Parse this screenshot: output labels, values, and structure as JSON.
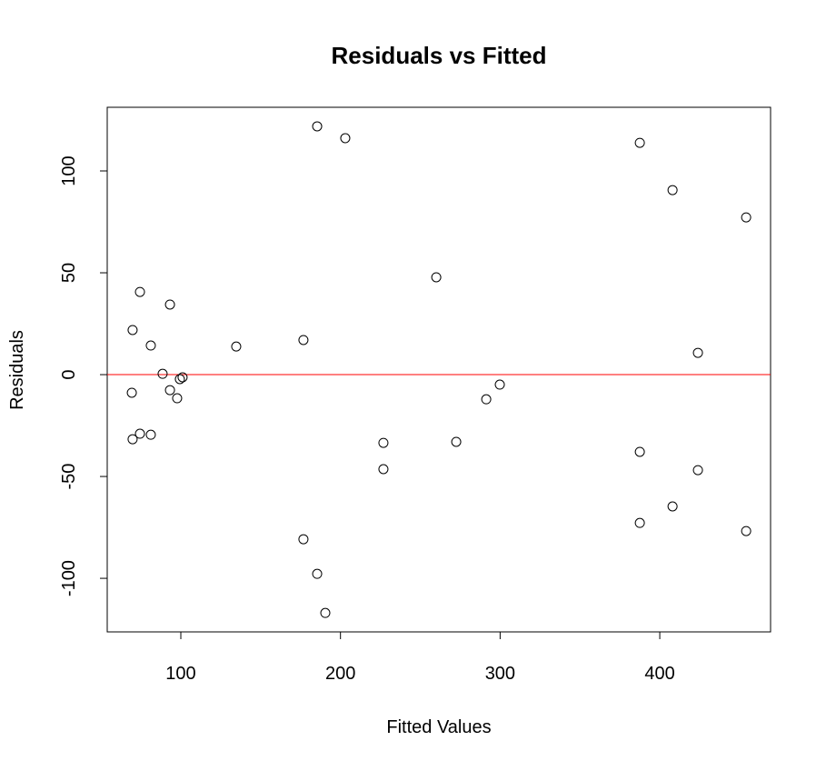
{
  "chart_data": {
    "type": "scatter",
    "title": "Residuals vs Fitted",
    "x_label": "Fitted Values",
    "y_label": "Residuals",
    "x": [
      185.4,
      203.0,
      387.5,
      408.0,
      454.1,
      260.0,
      74.4,
      93.2,
      69.8,
      176.8,
      81.2,
      134.7,
      423.9,
      88.6,
      99.4,
      101.1,
      69.3,
      93.2,
      97.7,
      299.8,
      291.3,
      69.8,
      74.4,
      81.2,
      226.9,
      272.5,
      387.5,
      226.9,
      423.9,
      408.0,
      387.5,
      454.1,
      176.8,
      185.4,
      190.5
    ],
    "values": [
      121.9,
      116.1,
      113.8,
      90.6,
      77.2,
      47.8,
      40.6,
      34.4,
      21.9,
      17.0,
      14.3,
      13.8,
      10.7,
      0.4,
      -2.2,
      -1.3,
      -8.9,
      -7.6,
      -11.6,
      -4.9,
      -12.1,
      -31.7,
      -29.0,
      -29.5,
      -33.5,
      -33.0,
      -37.9,
      -46.4,
      -46.9,
      -64.7,
      -72.8,
      -76.8,
      -80.8,
      -97.8,
      -117.0
    ],
    "color": "#000000",
    "hline": 0,
    "hline_color": "#ff0000",
    "xlim": [
      53.9,
      469.4
    ],
    "ylim": [
      -126.3,
      131.25
    ],
    "xticks": [
      100,
      200,
      300,
      400
    ],
    "yticks": [
      -100,
      -50,
      0,
      50,
      100
    ]
  }
}
